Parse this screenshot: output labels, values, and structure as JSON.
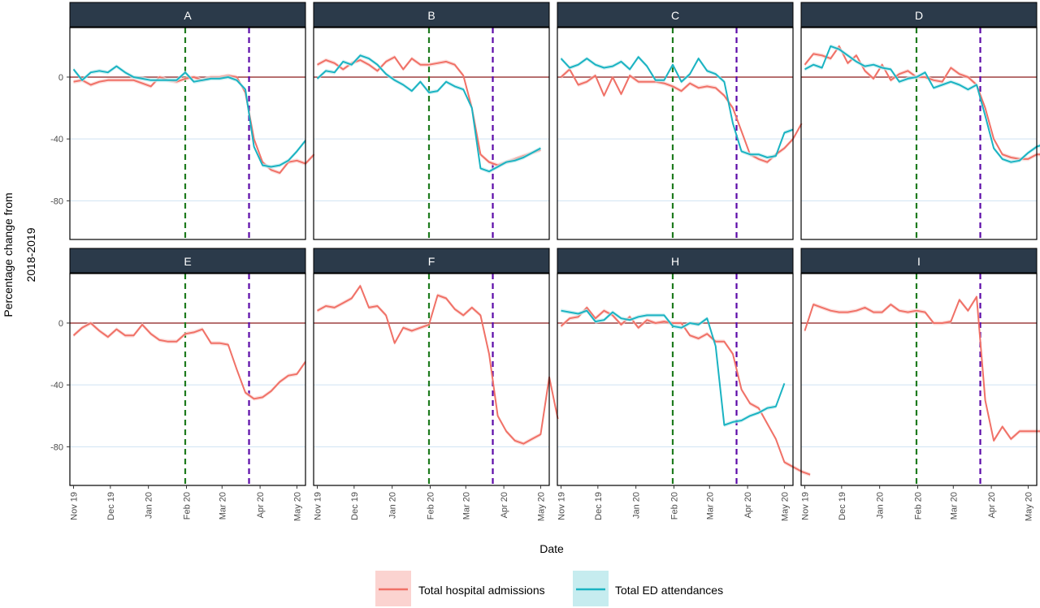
{
  "chart_data": {
    "type": "line",
    "xlabel": "Date",
    "ylabel": "Percentage change from 2018-2019",
    "ylabel_lines": [
      "Percentage change from",
      "2018-2019"
    ],
    "yticks": [
      0,
      -40,
      -80
    ],
    "ylim": [
      -105,
      32
    ],
    "xlim": [
      "2019-10-29",
      "2020-05-08"
    ],
    "xticks": [
      {
        "label": "Nov 19",
        "date": "2019-11-01"
      },
      {
        "label": "Dec 19",
        "date": "2019-12-01"
      },
      {
        "label": "Jan 20",
        "date": "2020-01-01"
      },
      {
        "label": "Feb 20",
        "date": "2020-02-01"
      },
      {
        "label": "Mar 20",
        "date": "2020-03-01"
      },
      {
        "label": "Apr 20",
        "date": "2020-04-01"
      },
      {
        "label": "May 20",
        "date": "2020-05-01"
      }
    ],
    "vlines": [
      {
        "date": "2020-01-31",
        "color": "#1e7b1e"
      },
      {
        "date": "2020-03-23",
        "color": "#5b0aa8"
      }
    ],
    "hline_zero_color": "#8b1a1a",
    "grid_color": "#cfe2f3",
    "strip_color": "#2b3a4a",
    "legend": {
      "position": "bottom",
      "items": [
        {
          "name": "Total hospital admissions",
          "color": "#f07167",
          "fill": "#fbd3d0"
        },
        {
          "name": "Total ED attendances",
          "color": "#1ab3c2",
          "fill": "#c6ecef"
        }
      ]
    },
    "start_date": "2019-11-01",
    "step_days": 7,
    "panels": [
      {
        "title": "A",
        "admissions": [
          -3,
          -2,
          -5,
          -3,
          -2,
          -2,
          -2,
          -2,
          -4,
          -6,
          0,
          -2,
          -3,
          -1,
          0,
          -2,
          0,
          0,
          1,
          0,
          -10,
          -40,
          -55,
          -60,
          -62,
          -55,
          -54,
          -56,
          -50
        ],
        "ed": [
          5,
          -2,
          3,
          4,
          3,
          7,
          3,
          0,
          -1,
          -2,
          -2,
          -2,
          -2,
          3,
          -3,
          -2,
          -1,
          -1,
          0,
          -2,
          -8,
          -45,
          -57,
          -58,
          -57,
          -54,
          -48,
          -41
        ]
      },
      {
        "title": "B",
        "admissions": [
          8,
          11,
          9,
          5,
          9,
          11,
          8,
          4,
          10,
          13,
          5,
          12,
          8,
          8,
          9,
          10,
          8,
          1,
          -20,
          -50,
          -55,
          -57,
          -55,
          -53,
          -51,
          -49,
          -47
        ],
        "ed": [
          -1,
          4,
          3,
          10,
          8,
          14,
          12,
          8,
          2,
          -2,
          -5,
          -9,
          -3,
          -10,
          -9,
          -3,
          -6,
          -8,
          -20,
          -59,
          -61,
          -58,
          -55,
          -54,
          -52,
          -49,
          -46
        ]
      },
      {
        "title": "C",
        "admissions": [
          0,
          5,
          -5,
          -3,
          1,
          -12,
          0,
          -11,
          1,
          -3,
          -3,
          -3,
          -4,
          -6,
          -9,
          -4,
          -7,
          -6,
          -7,
          -12,
          -20,
          -35,
          -50,
          -53,
          -55,
          -50,
          -46,
          -40,
          -30
        ],
        "ed": [
          12,
          6,
          8,
          12,
          8,
          6,
          7,
          10,
          5,
          13,
          7,
          -2,
          -2,
          8,
          -3,
          2,
          12,
          4,
          2,
          -3,
          -30,
          -48,
          -50,
          -50,
          -52,
          -51,
          -36,
          -34
        ]
      },
      {
        "title": "D",
        "admissions": [
          8,
          15,
          14,
          12,
          20,
          9,
          14,
          4,
          -1,
          8,
          -2,
          2,
          4,
          0,
          0,
          -2,
          -3,
          6,
          2,
          0,
          -5,
          -20,
          -40,
          -50,
          -52,
          -53,
          -53,
          -50,
          -50,
          -43
        ],
        "ed": [
          5,
          8,
          6,
          20,
          18,
          14,
          10,
          7,
          8,
          6,
          5,
          -3,
          -1,
          0,
          3,
          -7,
          -5,
          -3,
          -5,
          -8,
          -5,
          -25,
          -46,
          -53,
          -55,
          -54,
          -49,
          -45,
          -43,
          -16
        ]
      },
      {
        "title": "E",
        "admissions": [
          -8,
          -3,
          0,
          -5,
          -9,
          -4,
          -8,
          -8,
          -1,
          -7,
          -11,
          -12,
          -12,
          -7,
          -6,
          -4,
          -13,
          -13,
          -14,
          -30,
          -45,
          -49,
          -48,
          -44,
          -38,
          -34,
          -33,
          -25
        ]
      },
      {
        "title": "F",
        "admissions": [
          8,
          11,
          10,
          13,
          16,
          24,
          10,
          11,
          5,
          -13,
          -3,
          -5,
          -3,
          -1,
          18,
          16,
          9,
          5,
          10,
          5,
          -20,
          -60,
          -70,
          -76,
          -78,
          -75,
          -72,
          -35,
          -62
        ]
      },
      {
        "title": "H",
        "admissions": [
          -2,
          3,
          4,
          10,
          3,
          8,
          5,
          -1,
          4,
          -3,
          2,
          0,
          1,
          0,
          0,
          -8,
          -10,
          -7,
          -12,
          -12,
          -20,
          -43,
          -52,
          -55,
          -65,
          -75,
          -90,
          -93,
          -96,
          -98
        ],
        "ed": [
          8,
          7,
          6,
          8,
          1,
          2,
          7,
          3,
          2,
          4,
          5,
          5,
          5,
          -2,
          -3,
          0,
          -1,
          3,
          -15,
          -66,
          -64,
          -63,
          -60,
          -58,
          -55,
          -54,
          -39
        ]
      },
      {
        "title": "I",
        "admissions": [
          -5,
          12,
          10,
          8,
          7,
          7,
          8,
          10,
          7,
          7,
          12,
          8,
          7,
          8,
          7,
          0,
          0,
          1,
          15,
          8,
          17,
          -50,
          -76,
          -67,
          -75,
          -70,
          -70,
          -70,
          -70
        ]
      }
    ]
  }
}
